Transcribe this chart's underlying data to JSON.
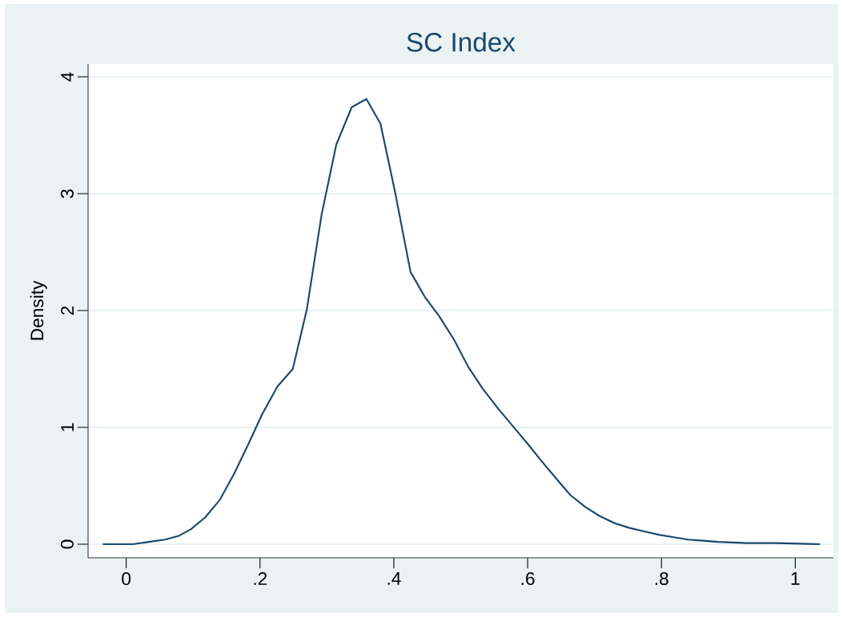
{
  "chart_data": {
    "type": "line",
    "title": "SC Index",
    "ylabel": "Density",
    "color": "#1a476f",
    "x": [
      -0.035,
      0.01,
      0.034,
      0.058,
      0.078,
      0.097,
      0.118,
      0.14,
      0.161,
      0.182,
      0.203,
      0.226,
      0.249,
      0.27,
      0.292,
      0.314,
      0.337,
      0.359,
      0.38,
      0.402,
      0.425,
      0.446,
      0.468,
      0.49,
      0.511,
      0.533,
      0.556,
      0.578,
      0.6,
      0.621,
      0.643,
      0.664,
      0.686,
      0.708,
      0.73,
      0.752,
      0.774,
      0.797,
      0.818,
      0.84,
      0.862,
      0.884,
      0.928,
      0.972,
      1.037
    ],
    "values": [
      0,
      0,
      0.02,
      0.04,
      0.07,
      0.13,
      0.23,
      0.38,
      0.6,
      0.85,
      1.11,
      1.35,
      1.5,
      2.01,
      2.82,
      3.42,
      3.74,
      3.81,
      3.6,
      3.01,
      2.33,
      2.12,
      1.95,
      1.75,
      1.52,
      1.33,
      1.16,
      1.01,
      0.86,
      0.71,
      0.56,
      0.42,
      0.32,
      0.24,
      0.18,
      0.14,
      0.11,
      0.08,
      0.06,
      0.04,
      0.03,
      0.02,
      0.01,
      0.01,
      0
    ],
    "xlim": [
      -0.057,
      1.057
    ],
    "ylim": [
      -0.116,
      4.11
    ],
    "xticks": [
      0,
      {
        "value": 0.2,
        "label": ".2"
      },
      {
        "value": 0.4,
        "label": ".4"
      },
      {
        "value": 0.6,
        "label": ".6"
      },
      {
        "value": 0.8,
        "label": ".8"
      },
      1
    ],
    "yticks": [
      0,
      1,
      2,
      3,
      4
    ],
    "grid": "y"
  }
}
